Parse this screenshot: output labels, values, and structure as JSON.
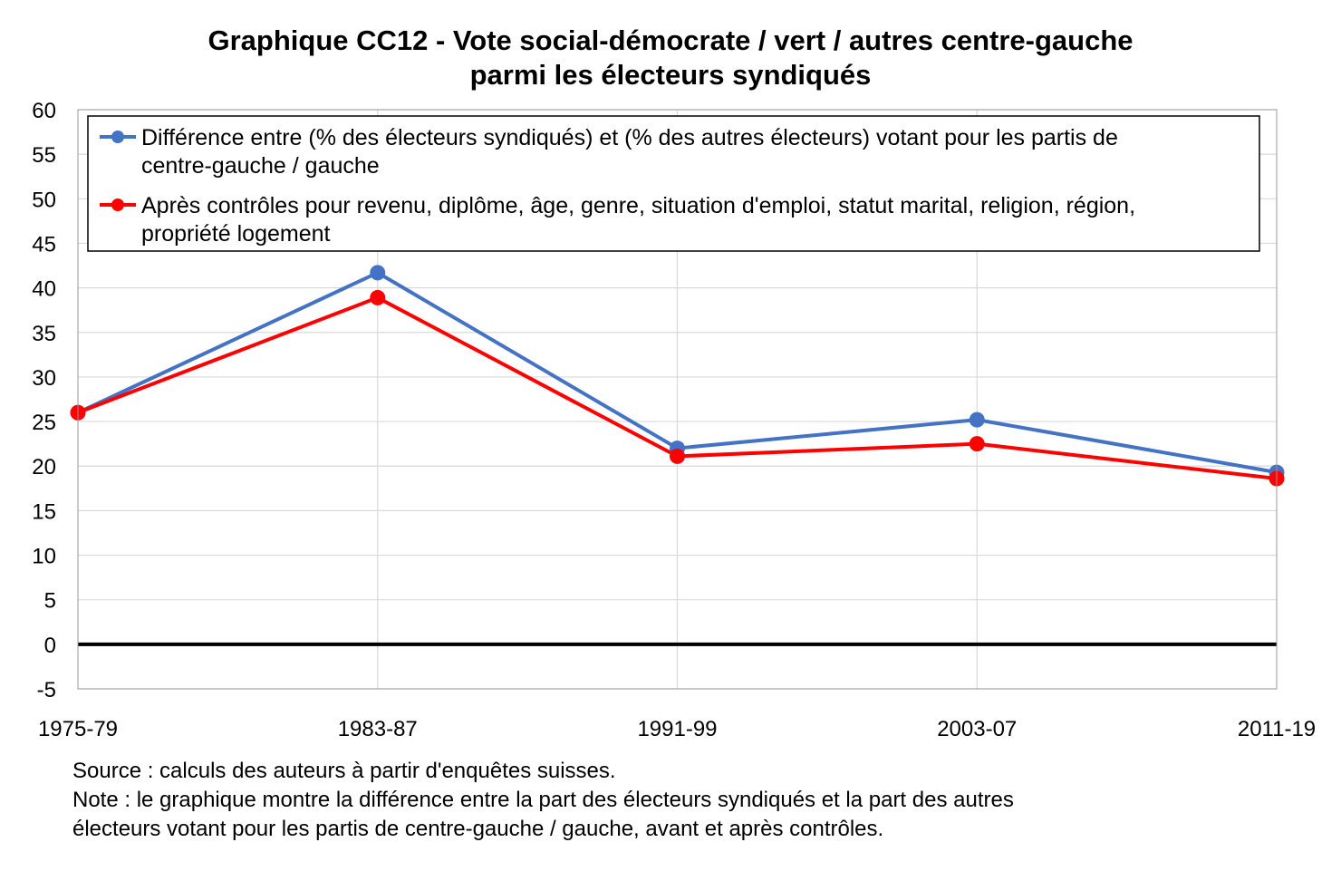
{
  "chart_data": {
    "type": "line",
    "title": "Graphique CC12 - Vote social-démocrate / vert / autres centre-gauche",
    "subtitle": "parmi les électeurs syndiqués",
    "categories": [
      "1975-79",
      "1983-87",
      "1991-99",
      "2003-07",
      "2011-19"
    ],
    "y_ticks": [
      "60",
      "55",
      "50",
      "45",
      "40",
      "35",
      "30",
      "25",
      "20",
      "15",
      "10",
      "5",
      "0",
      "-5"
    ],
    "ylim": [
      -5,
      60
    ],
    "y_step": 5,
    "grid": "horizontal and vertical",
    "legend_position": "top",
    "series": [
      {
        "name_line1": "Différence entre (% des électeurs syndiqués) et (% des autres électeurs) votant pour les partis de",
        "name_line2": "centre-gauche / gauche",
        "color": "#4472c4",
        "values": [
          26.0,
          41.7,
          22.0,
          25.2,
          19.3
        ]
      },
      {
        "name_line1": "Après contrôles pour revenu, diplôme, âge, genre, situation d'emploi, statut marital, religion, région,",
        "name_line2": "propriété logement",
        "color": "#ff0000",
        "values": [
          26.0,
          38.9,
          21.1,
          22.5,
          18.6
        ]
      }
    ]
  },
  "notes": {
    "source": "Source : calculs des auteurs à partir d'enquêtes suisses.",
    "note_line1": "Note : le graphique montre la différence entre la part des électeurs syndiqués et la part des autres",
    "note_line2": "électeurs votant pour les partis de centre-gauche / gauche, avant et après contrôles."
  }
}
